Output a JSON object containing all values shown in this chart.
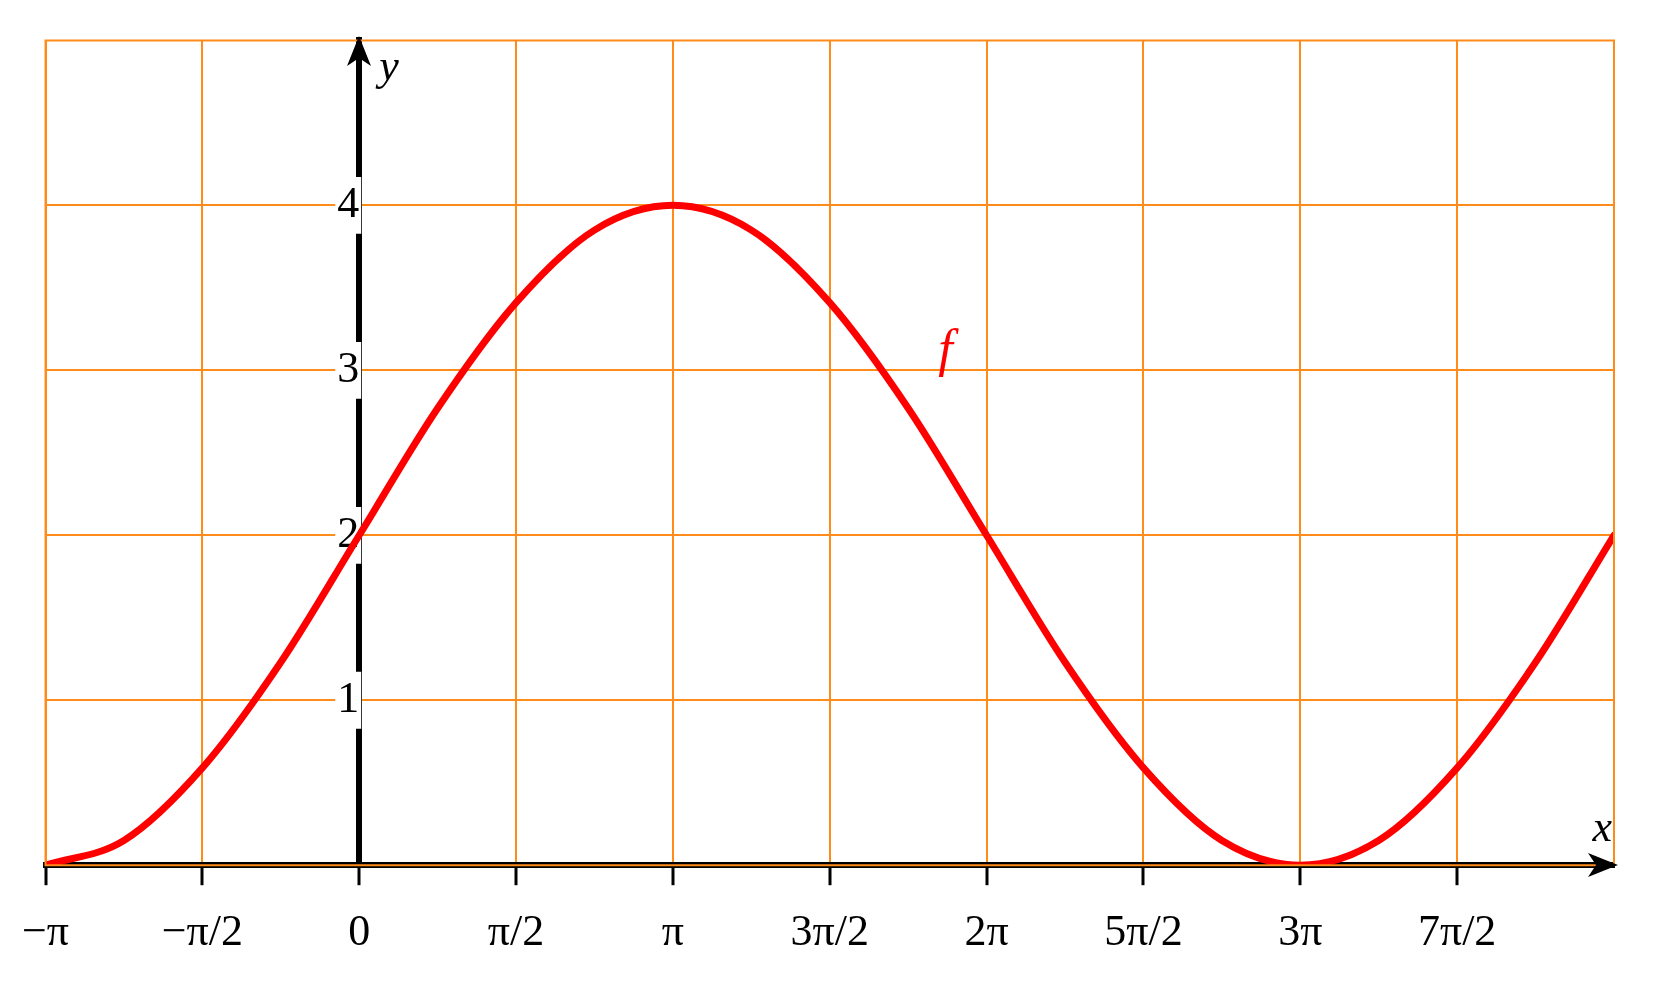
{
  "chart_data": {
    "type": "line",
    "xlabel": "x",
    "ylabel": "y",
    "x": [
      -3.1416,
      -2.3562,
      -1.5708,
      -0.7854,
      0,
      0.7854,
      1.5708,
      2.3562,
      3.1416,
      3.927,
      4.7124,
      5.4978,
      6.2832,
      7.0686,
      7.854,
      8.6394,
      9.4248,
      10.2102,
      10.9956,
      11.781,
      12.5664
    ],
    "series": [
      {
        "name": "f",
        "color": "#ff0000",
        "values": [
          0,
          0.15,
          0.59,
          1.23,
          2,
          2.77,
          3.41,
          3.85,
          4,
          3.85,
          3.41,
          2.77,
          2,
          1.23,
          0.59,
          0.15,
          0,
          0.15,
          0.59,
          1.23,
          2
        ]
      }
    ],
    "xlim": [
      -3.1416,
      12.5664
    ],
    "ylim": [
      0,
      5
    ],
    "xticks": [
      {
        "value": -3.1416,
        "label": "−π"
      },
      {
        "value": -1.5708,
        "label": "−π/2"
      },
      0,
      {
        "value": 1.5708,
        "label": "π/2"
      },
      {
        "value": 3.1416,
        "label": "π"
      },
      {
        "value": 4.7124,
        "label": "3π/2"
      },
      {
        "value": 6.2832,
        "label": "2π"
      },
      {
        "value": 7.854,
        "label": "5π/2"
      },
      {
        "value": 9.4248,
        "label": "3π"
      },
      {
        "value": 10.9956,
        "label": "7π/2"
      }
    ],
    "yticks": [
      1,
      2,
      3,
      4
    ],
    "grid": true,
    "legend": false,
    "marker": "none",
    "line_style": "solid"
  }
}
